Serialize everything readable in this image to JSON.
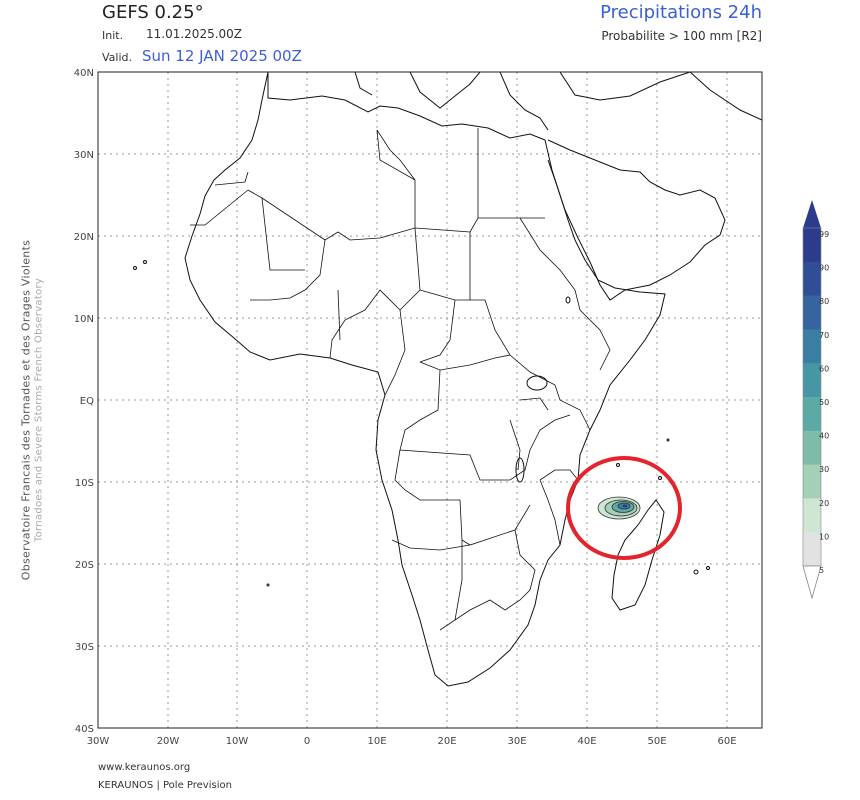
{
  "header": {
    "model": "GEFS 0.25°",
    "init_label": "Init.",
    "init_value": "11.01.2025.00Z",
    "valid_label": "Valid.",
    "valid_value": "Sun 12 JAN 2025 00Z",
    "product": "Precipitations 24h",
    "probability": "Probabilite > 100 mm [R2]"
  },
  "side_text": {
    "primary": "Observatoire Francais des Tornades et des Orages Violents",
    "secondary": "Tornadoes and Severe Storms French Observatory"
  },
  "footer": {
    "url": "www.keraunos.org",
    "credit": "KERAUNOS | Pole Prevision"
  },
  "map": {
    "lat_labels": [
      "40N",
      "30N",
      "20N",
      "10N",
      "EQ",
      "10S",
      "20S",
      "30S",
      "40S"
    ],
    "lon_labels": [
      "30W",
      "20W",
      "10W",
      "0",
      "10E",
      "20E",
      "30E",
      "40E",
      "50E",
      "60E"
    ],
    "highlight": "red circle around Madagascar / Mozambique Channel",
    "highlight_color": "#e3242b"
  },
  "colorbar": {
    "ticks": [
      "99",
      "90",
      "80",
      "70",
      "60",
      "50",
      "40",
      "30",
      "20",
      "10",
      "5"
    ],
    "colors": [
      "#2d3b8c",
      "#2f4e96",
      "#35649e",
      "#3b7ea3",
      "#4796a5",
      "#5da9a6",
      "#7dbcab",
      "#a5d0b8",
      "#cfe6d2",
      "#e2e2e2",
      "#ffffff"
    ]
  }
}
